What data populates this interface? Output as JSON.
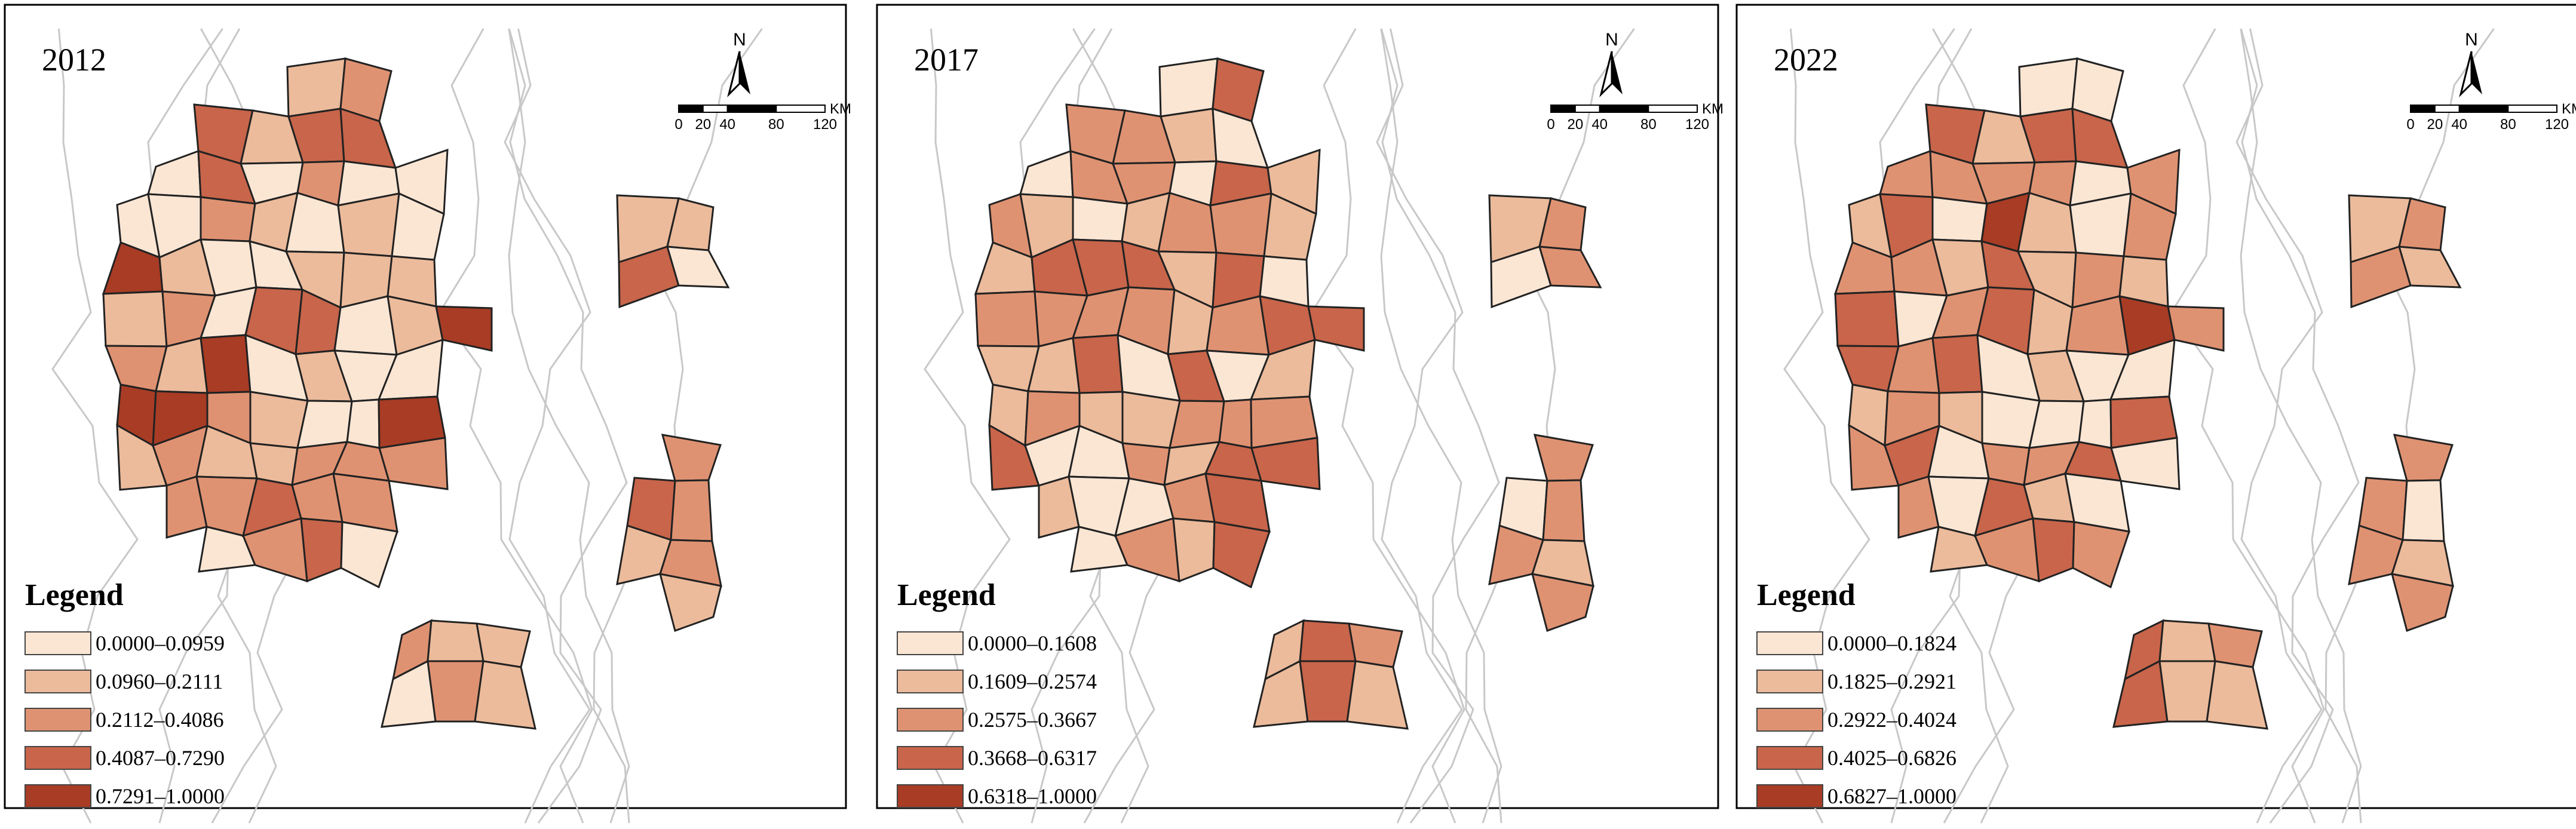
{
  "panels": [
    {
      "year": "2012",
      "legend_title": "Legend",
      "north": "N",
      "scale_labels": [
        "0",
        "20",
        "40",
        "80",
        "120"
      ],
      "scale_unit": "KM",
      "classes": [
        {
          "label": "0.0000–0.0959",
          "color": "#fbe6d4"
        },
        {
          "label": "0.0960–0.2111",
          "color": "#ecbb9b"
        },
        {
          "label": "0.2112–0.4086",
          "color": "#df9272"
        },
        {
          "label": "0.4087–0.7290",
          "color": "#c8654a"
        },
        {
          "label": "0.7291–1.0000",
          "color": "#a83c25"
        }
      ]
    },
    {
      "year": "2017",
      "legend_title": "Legend",
      "north": "N",
      "scale_labels": [
        "0",
        "20",
        "40",
        "80",
        "120"
      ],
      "scale_unit": "KM",
      "classes": [
        {
          "label": "0.0000–0.1608",
          "color": "#fbe6d4"
        },
        {
          "label": "0.1609–0.2574",
          "color": "#ecbb9b"
        },
        {
          "label": "0.2575–0.3667",
          "color": "#df9272"
        },
        {
          "label": "0.3668–0.6317",
          "color": "#c8654a"
        },
        {
          "label": "0.6318–1.0000",
          "color": "#a83c25"
        }
      ]
    },
    {
      "year": "2022",
      "legend_title": "Legend",
      "north": "N",
      "scale_labels": [
        "0",
        "20",
        "40",
        "80",
        "120"
      ],
      "scale_unit": "KM",
      "classes": [
        {
          "label": "0.0000–0.1824",
          "color": "#fbe6d4"
        },
        {
          "label": "0.1825–0.2921",
          "color": "#ecbb9b"
        },
        {
          "label": "0.2922–0.4024",
          "color": "#df9272"
        },
        {
          "label": "0.4025–0.6826",
          "color": "#c8654a"
        },
        {
          "label": "0.6827–1.0000",
          "color": "#a83c25"
        }
      ]
    }
  ]
}
